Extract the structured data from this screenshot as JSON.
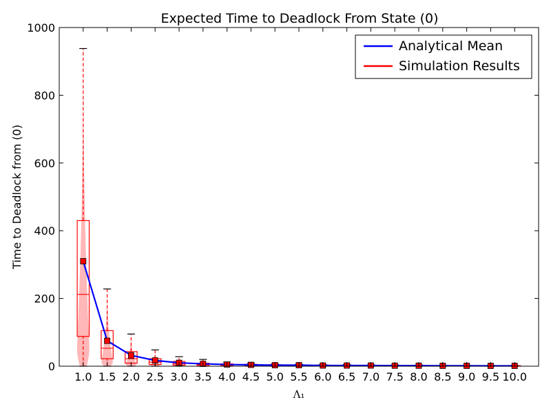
{
  "chart_data": {
    "type": "box-violin with line",
    "title": "Expected Time to Deadlock From State (0)",
    "ylabel": "Time to Deadlock from (0)",
    "xlabel": "Λ₁",
    "xlim": [
      0.5,
      10.5
    ],
    "ylim": [
      0,
      1000
    ],
    "yticks": [
      0,
      200,
      400,
      600,
      800,
      1000
    ],
    "x": [
      1.0,
      1.5,
      2.0,
      2.5,
      3.0,
      3.5,
      4.0,
      4.5,
      5.0,
      5.5,
      6.0,
      6.5,
      7.0,
      7.5,
      8.0,
      8.5,
      9.0,
      9.5,
      10.0
    ],
    "x_tick_labels": [
      "1.0",
      "1.5",
      "2.0",
      "2.5",
      "3.0",
      "3.5",
      "4.0",
      "4.5",
      "5.0",
      "5.5",
      "6.0",
      "6.5",
      "7.0",
      "7.5",
      "8.0",
      "8.5",
      "9.0",
      "9.5",
      "10.0"
    ],
    "series": [
      {
        "name": "Analytical Mean",
        "color": "#0000ff",
        "values": [
          310,
          75,
          32,
          17,
          10,
          7,
          5,
          4,
          3,
          3,
          2,
          2,
          2,
          1.5,
          1.5,
          1.2,
          1.2,
          1,
          1
        ]
      },
      {
        "name": "Simulation Results",
        "color": "#ff0000",
        "fill_color": "#ff9999",
        "means": [
          310,
          75,
          32,
          17,
          10,
          7,
          5,
          4,
          3,
          3,
          2,
          2,
          2,
          1.5,
          1.5,
          1.2,
          1.2,
          1,
          1
        ],
        "medians": [
          212,
          53,
          22,
          12,
          7,
          5,
          3.5,
          2.8,
          2.2,
          1.8,
          1.5,
          1.3,
          1.1,
          1,
          0.9,
          0.8,
          0.7,
          0.7,
          0.6
        ],
        "q1": [
          88,
          22,
          9,
          5,
          3,
          2,
          1.5,
          1.2,
          1,
          0.8,
          0.7,
          0.6,
          0.5,
          0.5,
          0.4,
          0.4,
          0.3,
          0.3,
          0.3
        ],
        "q3": [
          430,
          105,
          43,
          22,
          14,
          9,
          7,
          5.5,
          4.5,
          4,
          3.5,
          3,
          2.7,
          2.4,
          2.2,
          2,
          1.8,
          1.7,
          1.6
        ],
        "whisker_low": [
          0,
          0,
          0,
          0,
          0,
          0,
          0,
          0,
          0,
          0,
          0,
          0,
          0,
          0,
          0,
          0,
          0,
          0,
          0
        ],
        "whisker_high": [
          938,
          228,
          95,
          48,
          28,
          20,
          12,
          9,
          7,
          6,
          5,
          5,
          4,
          4,
          3.5,
          3,
          3,
          2.8,
          2.5
        ],
        "violin_width": [
          0.13,
          0.12,
          0.11,
          0.1,
          0.09,
          0.09,
          0.09,
          0.09,
          0.09,
          0.09,
          0.09,
          0.09,
          0.09,
          0.09,
          0.09,
          0.09,
          0.09,
          0.09,
          0.09
        ]
      }
    ],
    "legend": {
      "position": "top-right",
      "entries": [
        {
          "label": "Analytical Mean",
          "color": "#0000ff"
        },
        {
          "label": "Simulation Results",
          "color": "#ff0000"
        }
      ]
    },
    "grid": false
  }
}
